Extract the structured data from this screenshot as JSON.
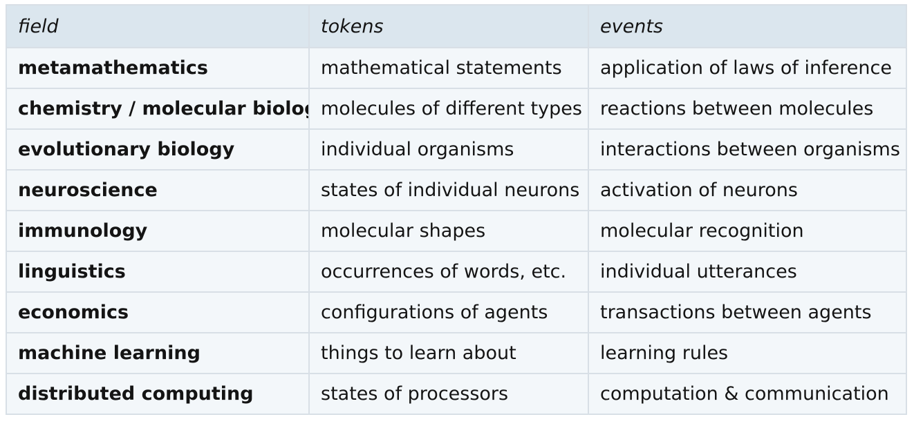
{
  "table": {
    "headers": [
      "field",
      "tokens",
      "events"
    ],
    "rows": [
      {
        "field": "metamathematics",
        "tokens": "mathematical statements",
        "events": "application of laws of inference"
      },
      {
        "field": "chemistry / molecular biology",
        "tokens": "molecules of different types",
        "events": "reactions between molecules"
      },
      {
        "field": "evolutionary biology",
        "tokens": "individual organisms",
        "events": "interactions between organisms"
      },
      {
        "field": "neuroscience",
        "tokens": "states of individual neurons",
        "events": "activation of neurons"
      },
      {
        "field": "immunology",
        "tokens": "molecular shapes",
        "events": "molecular recognition"
      },
      {
        "field": "linguistics",
        "tokens": "occurrences of words, etc.",
        "events": "individual utterances"
      },
      {
        "field": "economics",
        "tokens": "configurations of agents",
        "events": "transactions between agents"
      },
      {
        "field": "machine learning",
        "tokens": "things to learn about",
        "events": "learning rules"
      },
      {
        "field": "distributed computing",
        "tokens": "states of processors",
        "events": "computation & communication"
      }
    ]
  }
}
